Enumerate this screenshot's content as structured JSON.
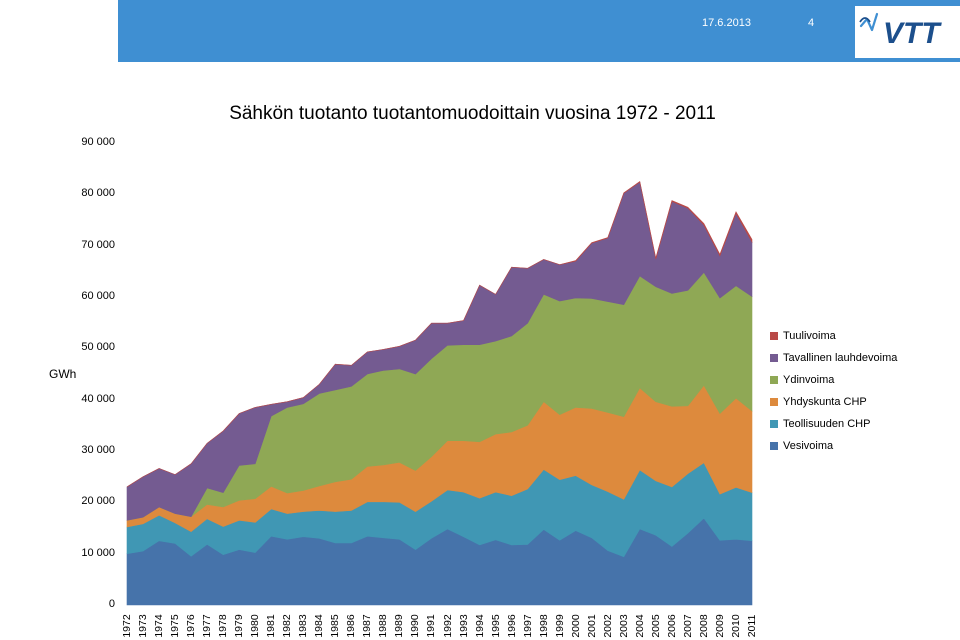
{
  "header": {
    "date": "17.6.2013",
    "page_number": "4",
    "logo_text": "VTT",
    "band_color": "#3f8fd2"
  },
  "chart_data": {
    "type": "area",
    "stacked": true,
    "title": "Sähkön tuotanto tuotantomuodoittain vuosina 1972 - 2011",
    "ylabel": "GWh",
    "xlabel": "",
    "ylim": [
      0,
      90000
    ],
    "yticks": [
      0,
      10000,
      20000,
      30000,
      40000,
      50000,
      60000,
      70000,
      80000,
      90000
    ],
    "ytick_labels": [
      "0",
      "10 000",
      "20 000",
      "30 000",
      "40 000",
      "50 000",
      "60 000",
      "70 000",
      "80 000",
      "90 000"
    ],
    "grid": false,
    "legend_position": "right",
    "categories": [
      "1972",
      "1973",
      "1974",
      "1975",
      "1976",
      "1977",
      "1978",
      "1979",
      "1980",
      "1981",
      "1982",
      "1983",
      "1984",
      "1985",
      "1986",
      "1987",
      "1988",
      "1989",
      "1990",
      "1991",
      "1992",
      "1993",
      "1994",
      "1995",
      "1996",
      "1997",
      "1998",
      "1999",
      "2000",
      "2001",
      "2002",
      "2003",
      "2004",
      "2005",
      "2006",
      "2007",
      "2008",
      "2009",
      "2010",
      "2011"
    ],
    "series": [
      {
        "name": "Vesivoima",
        "color": "#4673aa",
        "values": [
          10000,
          10500,
          12500,
          12000,
          9500,
          11800,
          9800,
          10800,
          10200,
          13400,
          12800,
          13300,
          13000,
          12100,
          12100,
          13400,
          13100,
          12800,
          10800,
          13000,
          14800,
          13300,
          11700,
          12700,
          11700,
          11800,
          14700,
          12600,
          14500,
          13100,
          10600,
          9400,
          14800,
          13600,
          11400,
          14000,
          16900,
          12600,
          12800,
          12500
        ]
      },
      {
        "name": "Teollisuuden CHP",
        "color": "#4097b4",
        "values": [
          5200,
          5300,
          5000,
          4000,
          4800,
          5000,
          5500,
          5700,
          5900,
          5300,
          5000,
          4900,
          5400,
          6100,
          6300,
          6700,
          7000,
          7200,
          7400,
          7200,
          7600,
          8700,
          9100,
          9300,
          9600,
          10800,
          11700,
          11800,
          10700,
          10300,
          11500,
          11200,
          11500,
          10600,
          11600,
          11600,
          10800,
          9000,
          10100,
          9400
        ]
      },
      {
        "name": "Yhdyskunta CHP",
        "color": "#dd8a3d",
        "values": [
          1300,
          1300,
          1600,
          1800,
          2900,
          2800,
          3800,
          3900,
          4600,
          4400,
          4000,
          4100,
          4800,
          5800,
          6100,
          6900,
          7200,
          7800,
          8000,
          8700,
          9600,
          10000,
          11000,
          11300,
          12400,
          12400,
          13200,
          12700,
          13300,
          14900,
          15400,
          16100,
          16000,
          15400,
          15700,
          13200,
          15100,
          15700,
          17400,
          15900
        ]
      },
      {
        "name": "Ydinvoima",
        "color": "#8fa855",
        "values": [
          0,
          0,
          0,
          0,
          0,
          3200,
          2800,
          6800,
          6800,
          13700,
          16700,
          16900,
          18000,
          17900,
          18100,
          18000,
          18400,
          18200,
          18800,
          19100,
          18600,
          18700,
          18900,
          18100,
          18700,
          19900,
          20900,
          22100,
          21300,
          21400,
          21600,
          21800,
          21800,
          22400,
          22000,
          22500,
          22000,
          22500,
          21900,
          22300
        ]
      },
      {
        "name": "Tavallinen lauhdevoima",
        "color": "#745b91",
        "values": [
          6500,
          7900,
          7500,
          7600,
          10300,
          8700,
          12000,
          10100,
          11000,
          2300,
          1100,
          1200,
          1800,
          5000,
          4100,
          4300,
          4100,
          4400,
          6600,
          6900,
          4300,
          4700,
          11600,
          9100,
          13400,
          10700,
          6800,
          7100,
          7200,
          10800,
          12400,
          21700,
          18300,
          5400,
          17900,
          16000,
          9200,
          8200,
          14100,
          10600
        ]
      },
      {
        "name": "Tuulivoima",
        "color": "#b94947",
        "values": [
          0,
          0,
          0,
          0,
          0,
          0,
          0,
          0,
          0,
          0,
          0,
          0,
          0,
          0,
          0,
          0,
          0,
          0,
          0,
          0,
          0,
          0,
          0,
          0,
          0,
          0,
          0,
          0,
          100,
          100,
          100,
          100,
          100,
          200,
          200,
          200,
          300,
          300,
          300,
          500
        ]
      }
    ]
  }
}
